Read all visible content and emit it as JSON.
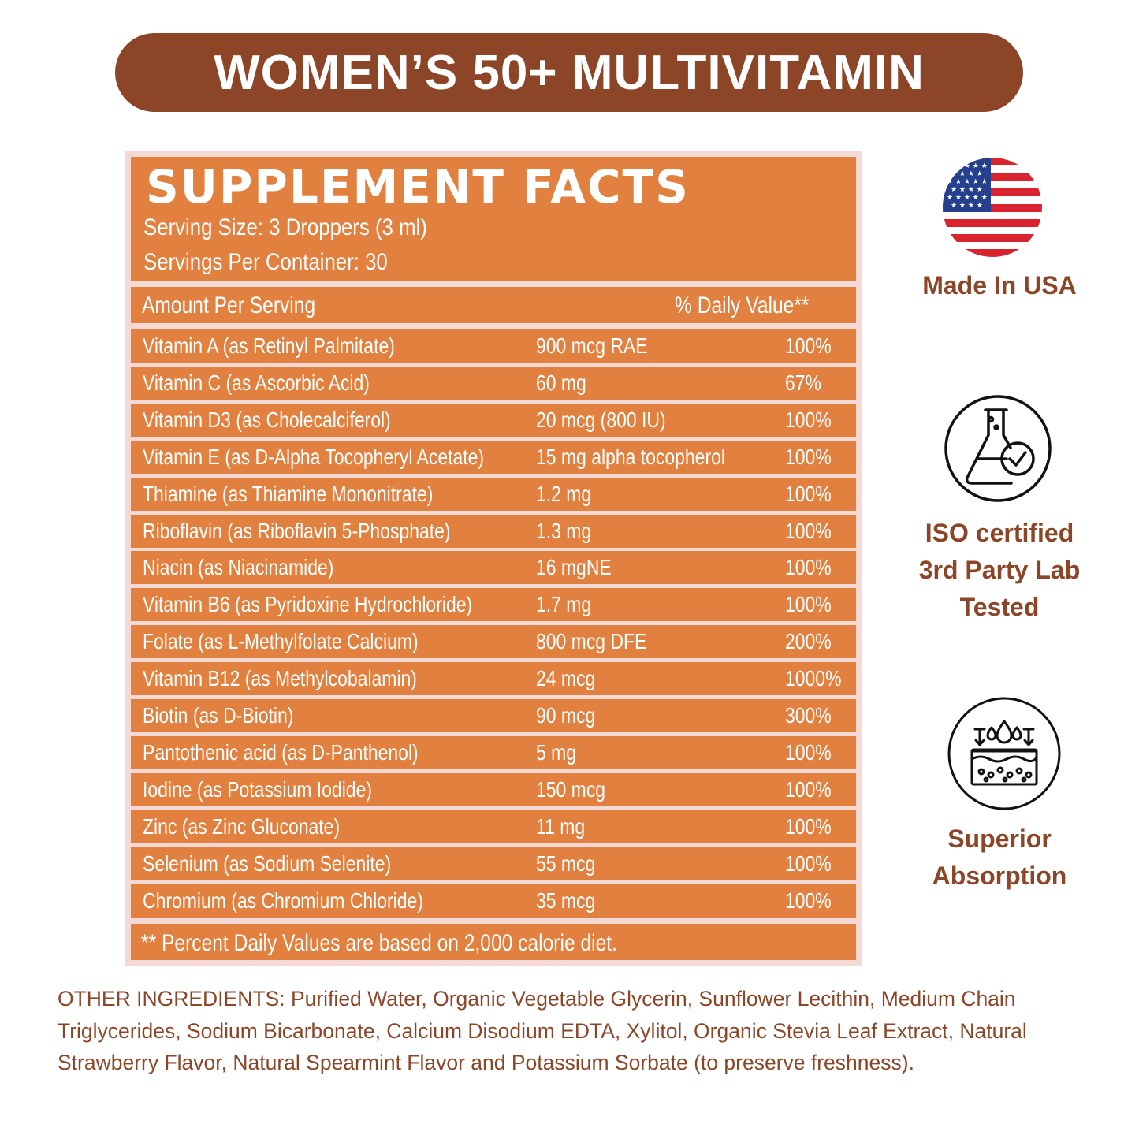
{
  "header": {
    "title": "WOMEN’S 50+ MULTIVITAMIN"
  },
  "facts": {
    "title": "SUPPLEMENT FACTS",
    "serving_size": "Serving Size: 3 Droppers (3 ml)",
    "servings_per_container": "Servings Per Container: 30",
    "amount_header": "Amount Per Serving",
    "dv_header": "% Daily Value**",
    "rows": [
      {
        "name": "Vitamin A (as Retinyl Palmitate)",
        "amount": "900 mcg RAE",
        "dv": "100%"
      },
      {
        "name": "Vitamin C (as Ascorbic Acid)",
        "amount": "60 mg",
        "dv": "67%"
      },
      {
        "name": "Vitamin D3 (as Cholecalciferol)",
        "amount": "20 mcg (800 IU)",
        "dv": "100%"
      },
      {
        "name": "Vitamin E (as D-Alpha Tocopheryl Acetate)",
        "amount": "15 mg alpha tocopherol",
        "dv": "100%"
      },
      {
        "name": "Thiamine (as Thiamine Mononitrate)",
        "amount": "1.2 mg",
        "dv": "100%"
      },
      {
        "name": "Riboflavin (as Riboflavin 5-Phosphate)",
        "amount": "1.3 mg",
        "dv": "100%"
      },
      {
        "name": "Niacin (as Niacinamide)",
        "amount": "16 mgNE",
        "dv": "100%"
      },
      {
        "name": "Vitamin B6 (as Pyridoxine Hydrochloride)",
        "amount": "1.7 mg",
        "dv": "100%"
      },
      {
        "name": "Folate (as L-Methylfolate Calcium)",
        "amount": "800 mcg DFE",
        "dv": "200%"
      },
      {
        "name": "Vitamin B12 (as Methylcobalamin)",
        "amount": "24 mcg",
        "dv": "1000%"
      },
      {
        "name": "Biotin (as D-Biotin)",
        "amount": "90 mcg",
        "dv": "300%"
      },
      {
        "name": "Pantothenic acid (as D-Panthenol)",
        "amount": "5 mg",
        "dv": "100%"
      },
      {
        "name": "Iodine (as Potassium Iodide)",
        "amount": "150 mcg",
        "dv": "100%"
      },
      {
        "name": "Zinc (as Zinc Gluconate)",
        "amount": "11 mg",
        "dv": "100%"
      },
      {
        "name": "Selenium (as Sodium Selenite)",
        "amount": "55 mcg",
        "dv": "100%"
      },
      {
        "name": "Chromium (as Chromium Chloride)",
        "amount": "35 mcg",
        "dv": "100%"
      }
    ],
    "footnote": "** Percent Daily Values are based on 2,000 calorie diet."
  },
  "badges": {
    "usa": {
      "label": "Made In USA",
      "icon": "us-flag-icon"
    },
    "lab": {
      "line1": "ISO certified",
      "line2": "3rd Party Lab",
      "line3": "Tested",
      "icon": "flask-check-icon"
    },
    "absorption": {
      "line1": "Superior",
      "line2": "Absorption",
      "icon": "skin-absorption-icon"
    }
  },
  "other_ingredients": "OTHER INGREDIENTS: Purified Water, Organic Vegetable Glycerin, Sunflower Lecithin, Medium Chain Triglycerides, Sodium Bicarbonate, Calcium Disodium EDTA, Xylitol, Organic Stevia Leaf Extract, Natural Strawberry Flavor, Natural Spearmint Flavor and Potassium Sorbate (to preserve freshness).",
  "colors": {
    "brand_brown": "#8c4526",
    "panel_orange": "#e2803f",
    "panel_frame": "#f5d9d4"
  }
}
